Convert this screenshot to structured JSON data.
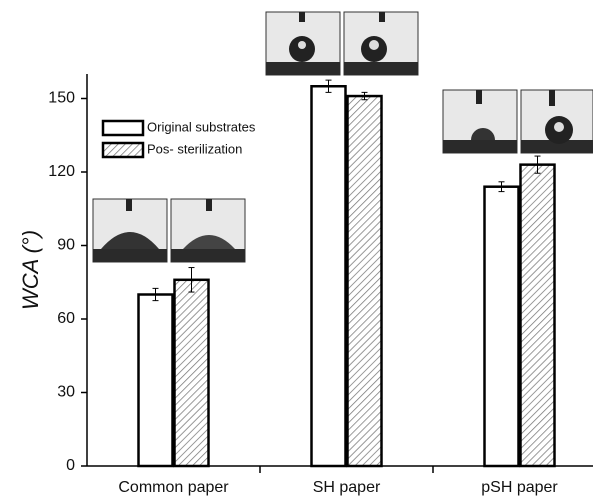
{
  "chart_data": {
    "type": "bar",
    "ylabel": "WCA (°)",
    "categories": [
      "Common paper",
      "SH paper",
      "pSH paper"
    ],
    "series": [
      {
        "name": "Original substrates",
        "color": "#ffffff",
        "hatch": false,
        "values": [
          70,
          155,
          114
        ],
        "errors": [
          2.5,
          2.5,
          2
        ]
      },
      {
        "name": "Pos- sterilization",
        "color": "#ffffff",
        "hatch": true,
        "values": [
          76,
          151,
          123
        ],
        "errors": [
          5,
          1.5,
          3.5
        ]
      }
    ],
    "ylim": [
      0,
      160
    ],
    "yticks": [
      0,
      30,
      60,
      90,
      120,
      150
    ],
    "grid": false,
    "legend": "upper left"
  }
}
